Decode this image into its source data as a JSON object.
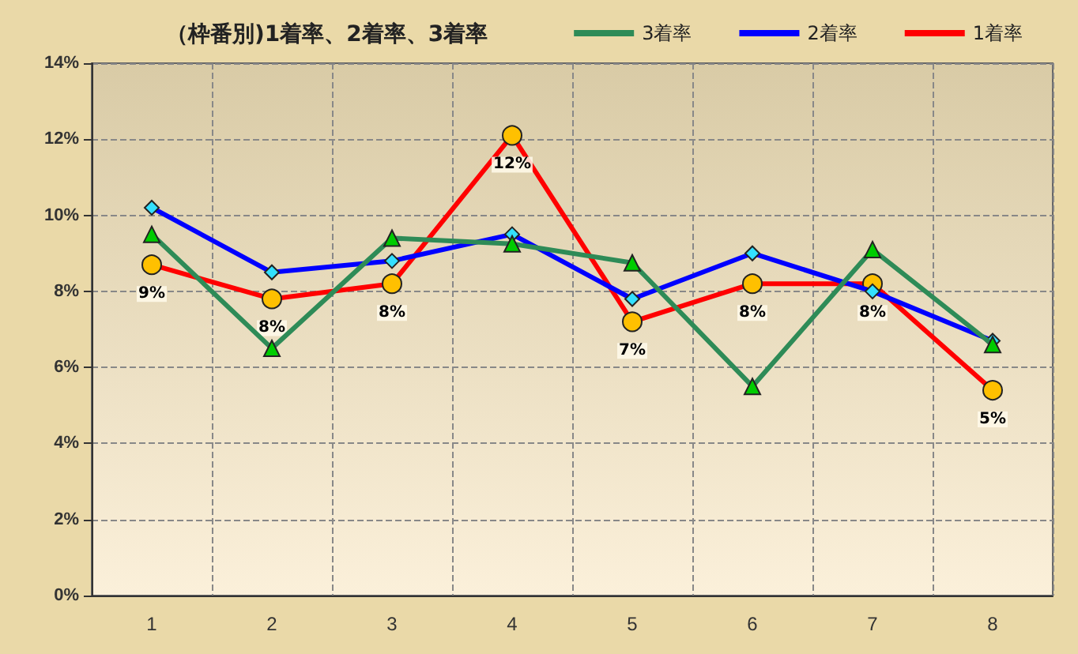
{
  "chart_data": {
    "type": "line",
    "title": "（枠番別)1着率、2着率、3着率",
    "categories": [
      "1",
      "2",
      "3",
      "4",
      "5",
      "6",
      "7",
      "8"
    ],
    "series": [
      {
        "name": "3着率",
        "color": "#2e8b57",
        "marker": "triangle",
        "values": [
          9.5,
          6.5,
          9.4,
          9.25,
          8.75,
          5.5,
          9.1,
          6.6
        ]
      },
      {
        "name": "2着率",
        "color": "#0000ff",
        "marker": "diamond",
        "values": [
          10.2,
          8.5,
          8.8,
          9.5,
          7.8,
          9.0,
          8.0,
          6.7
        ]
      },
      {
        "name": "1着率",
        "color": "#ff0000",
        "marker": "circle",
        "values": [
          8.7,
          7.8,
          8.2,
          12.1,
          7.2,
          8.2,
          8.2,
          5.4
        ],
        "value_labels": [
          "9%",
          "8%",
          "8%",
          "12%",
          "7%",
          "8%",
          "8%",
          "5%"
        ]
      }
    ],
    "ylim": [
      0,
      14
    ],
    "yticks": [
      {
        "value": 0,
        "label": "0%"
      },
      {
        "value": 2,
        "label": "2%"
      },
      {
        "value": 4,
        "label": "4%"
      },
      {
        "value": 6,
        "label": "6%"
      },
      {
        "value": 8,
        "label": "8%"
      },
      {
        "value": 10,
        "label": "10%"
      },
      {
        "value": 12,
        "label": "12%"
      },
      {
        "value": 14,
        "label": "14%"
      }
    ],
    "grid": true,
    "legend": "top right",
    "line_style": "solid"
  }
}
